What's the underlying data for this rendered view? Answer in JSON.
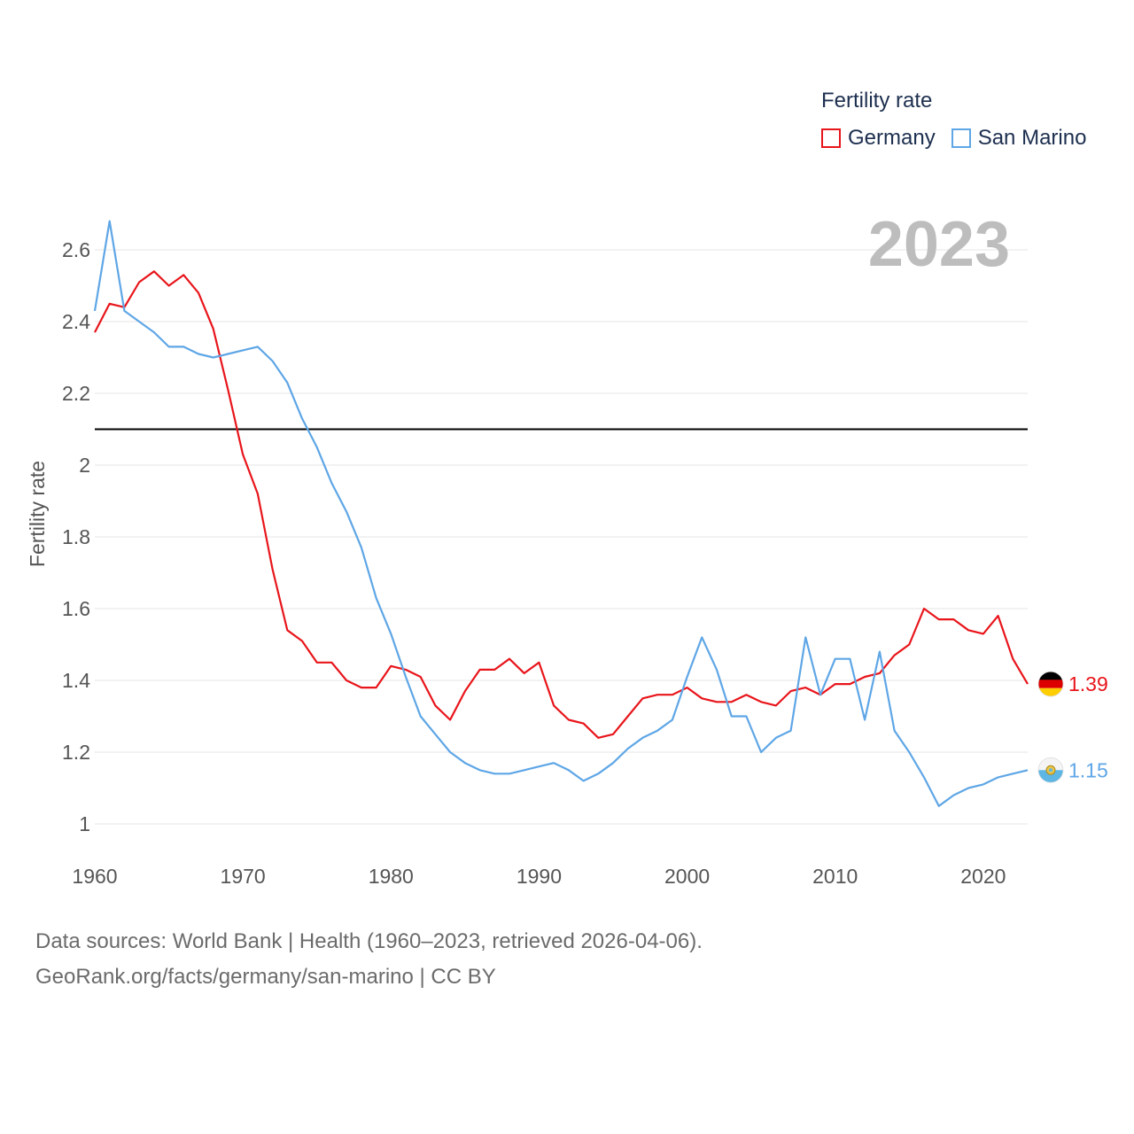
{
  "chart_data": {
    "type": "line",
    "title": "Fertility rate",
    "big_year": "2023",
    "xlabel": "",
    "ylabel": "Fertility rate",
    "xlim": [
      1960,
      2023
    ],
    "ylim": [
      0.96,
      2.7
    ],
    "x_ticks": [
      1960,
      1970,
      1980,
      1990,
      2000,
      2010,
      2020
    ],
    "y_ticks": [
      1,
      1.2,
      1.4,
      1.6,
      1.8,
      2,
      2.2,
      2.4,
      2.6
    ],
    "y_tick_labels": [
      "1",
      "1.2",
      "1.4",
      "1.6",
      "1.8",
      "2",
      "2.2",
      "2.4",
      "2.6"
    ],
    "reference_line": 2.1,
    "grid": true,
    "legend_position": "top-right",
    "x_start": 1960,
    "series": [
      {
        "name": "Germany",
        "color": "#e8151b",
        "end_label": "1.39",
        "values": [
          2.37,
          2.45,
          2.44,
          2.51,
          2.54,
          2.5,
          2.53,
          2.48,
          2.38,
          2.21,
          2.03,
          1.92,
          1.71,
          1.54,
          1.51,
          1.45,
          1.45,
          1.4,
          1.38,
          1.38,
          1.44,
          1.43,
          1.41,
          1.33,
          1.29,
          1.37,
          1.43,
          1.43,
          1.46,
          1.42,
          1.45,
          1.33,
          1.29,
          1.28,
          1.24,
          1.25,
          1.3,
          1.35,
          1.36,
          1.36,
          1.38,
          1.35,
          1.34,
          1.34,
          1.36,
          1.34,
          1.33,
          1.37,
          1.38,
          1.36,
          1.39,
          1.39,
          1.41,
          1.42,
          1.47,
          1.5,
          1.6,
          1.57,
          1.57,
          1.54,
          1.53,
          1.58,
          1.46,
          1.39
        ]
      },
      {
        "name": "San Marino",
        "color": "#5ea6e6",
        "end_label": "1.15",
        "values": [
          2.43,
          2.68,
          2.43,
          2.4,
          2.37,
          2.33,
          2.33,
          2.31,
          2.3,
          2.31,
          2.32,
          2.33,
          2.29,
          2.23,
          2.13,
          2.05,
          1.95,
          1.87,
          1.77,
          1.63,
          1.53,
          1.41,
          1.3,
          1.25,
          1.2,
          1.17,
          1.15,
          1.14,
          1.14,
          1.15,
          1.16,
          1.17,
          1.15,
          1.12,
          1.14,
          1.17,
          1.21,
          1.24,
          1.26,
          1.29,
          1.41,
          1.52,
          1.43,
          1.3,
          1.3,
          1.2,
          1.24,
          1.26,
          1.52,
          1.36,
          1.46,
          1.46,
          1.29,
          1.48,
          1.26,
          1.2,
          1.13,
          1.05,
          1.08,
          1.1,
          1.11,
          1.13,
          1.14,
          1.15
        ]
      }
    ]
  },
  "footer": {
    "line1": "Data sources: World Bank | Health (1960–2023, retrieved 2026-04-06).",
    "line2": "GeoRank.org/facts/germany/san-marino | CC BY"
  }
}
